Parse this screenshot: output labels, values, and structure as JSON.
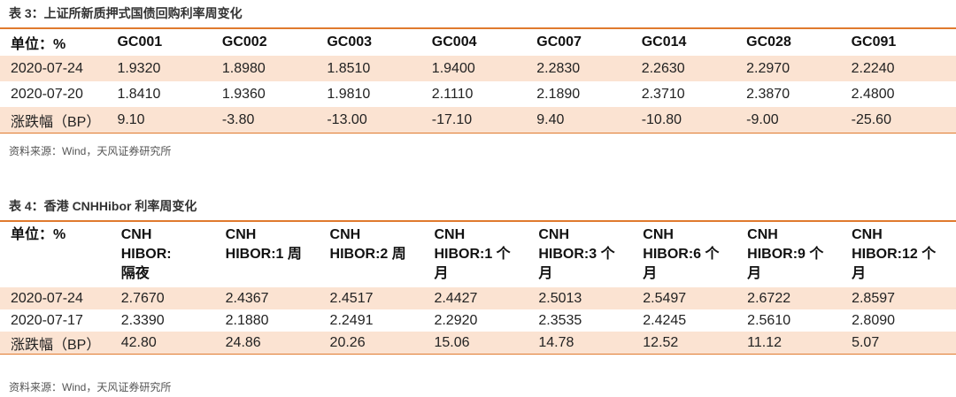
{
  "table1": {
    "title": "表 3：上证所新质押式国债回购利率周变化",
    "headers": [
      "单位：%",
      "GC001",
      "GC002",
      "GC003",
      "GC004",
      "GC007",
      "GC014",
      "GC028",
      "GC091"
    ],
    "rows": [
      [
        "2020-07-24",
        "1.9320",
        "1.8980",
        "1.8510",
        "1.9400",
        "2.2830",
        "2.2630",
        "2.2970",
        "2.2240"
      ],
      [
        "2020-07-20",
        "1.8410",
        "1.9360",
        "1.9810",
        "2.1110",
        "2.1890",
        "2.3710",
        "2.3870",
        "2.4800"
      ],
      [
        "涨跌幅（BP）",
        "9.10",
        "-3.80",
        "-13.00",
        "-17.10",
        "9.40",
        "-10.80",
        "-9.00",
        "-25.60"
      ]
    ],
    "source": "资料来源：Wind，天风证券研究所"
  },
  "table2": {
    "title": "表 4：香港 CNHHibor 利率周变化",
    "headers": [
      "单位：%",
      "CNH\nHIBOR:\n隔夜",
      "CNH\nHIBOR:1 周",
      "CNH\nHIBOR:2 周",
      "CNH\nHIBOR:1 个\n月",
      "CNH\nHIBOR:3 个\n月",
      "CNH\nHIBOR:6 个\n月",
      "CNH\nHIBOR:9 个\n月",
      "CNH\nHIBOR:12 个\n月"
    ],
    "rows": [
      [
        "2020-07-24",
        "2.7670",
        "2.4367",
        "2.4517",
        "2.4427",
        "2.5013",
        "2.5497",
        "2.6722",
        "2.8597"
      ],
      [
        "2020-07-17",
        "2.3390",
        "2.1880",
        "2.2491",
        "2.2920",
        "2.3535",
        "2.4245",
        "2.5610",
        "2.8090"
      ],
      [
        "涨跌幅（BP）",
        "42.80",
        "24.86",
        "20.26",
        "15.06",
        "14.78",
        "12.52",
        "11.12",
        "5.07"
      ]
    ],
    "source": "资料来源：Wind，天风证券研究所"
  },
  "colors": {
    "accent": "#e07a2e",
    "row_shade": "#fbe3d2"
  }
}
